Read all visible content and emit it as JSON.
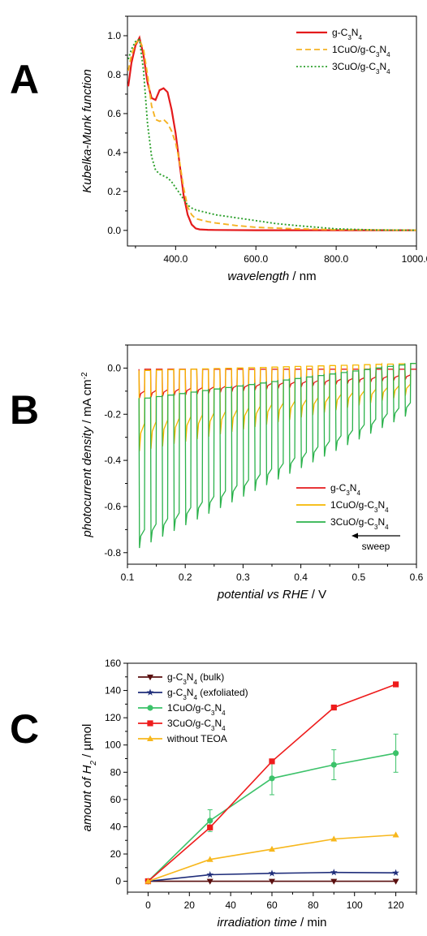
{
  "chart_data": [
    {
      "panel": "A",
      "type": "line",
      "xlabel": {
        "italic": "wavelength",
        "rest": " / nm"
      },
      "ylabel": {
        "italic": "Kubelka-Munk function",
        "rest": ""
      },
      "xlim": [
        280,
        1000
      ],
      "ylim": [
        -0.08,
        1.1
      ],
      "xticks": [
        400,
        600,
        800,
        1000
      ],
      "yticks": [
        0.0,
        0.2,
        0.4,
        0.6,
        0.8,
        1.0
      ],
      "series": [
        {
          "name": "g-C3N4",
          "name_html": "g-C<tspan baseline-shift='sub' font-size='8'>3</tspan>N<tspan baseline-shift='sub' font-size='8'>4</tspan>",
          "color": "#e41a1c",
          "style": "solid",
          "x": [
            282,
            290,
            300,
            310,
            320,
            330,
            340,
            350,
            360,
            370,
            380,
            390,
            400,
            410,
            420,
            430,
            440,
            450,
            460,
            480,
            500,
            600,
            800,
            1000
          ],
          "y": [
            0.74,
            0.86,
            0.95,
            0.99,
            0.9,
            0.76,
            0.68,
            0.67,
            0.72,
            0.73,
            0.71,
            0.62,
            0.5,
            0.34,
            0.18,
            0.08,
            0.03,
            0.01,
            0.005,
            0.003,
            0.002,
            0.001,
            0.001,
            0.001
          ]
        },
        {
          "name": "1CuO/g-C3N4",
          "name_html": "1CuO/g-C<tspan baseline-shift='sub' font-size='8'>3</tspan>N<tspan baseline-shift='sub' font-size='8'>4</tspan>",
          "color": "#f5b324",
          "style": "dashed",
          "x": [
            282,
            290,
            300,
            310,
            320,
            330,
            340,
            350,
            360,
            370,
            380,
            390,
            400,
            410,
            420,
            430,
            440,
            450,
            460,
            480,
            500,
            550,
            600,
            700,
            800,
            900,
            1000
          ],
          "y": [
            0.82,
            0.9,
            0.96,
            0.98,
            0.93,
            0.8,
            0.64,
            0.57,
            0.56,
            0.57,
            0.55,
            0.51,
            0.45,
            0.35,
            0.22,
            0.12,
            0.08,
            0.06,
            0.055,
            0.045,
            0.038,
            0.025,
            0.016,
            0.008,
            0.004,
            0.002,
            0.001
          ]
        },
        {
          "name": "3CuO/g-C3N4",
          "name_html": "3CuO/g-C<tspan baseline-shift='sub' font-size='8'>3</tspan>N<tspan baseline-shift='sub' font-size='8'>4</tspan>",
          "color": "#2ca02c",
          "style": "dotted",
          "x": [
            282,
            290,
            300,
            310,
            320,
            330,
            340,
            350,
            360,
            370,
            380,
            390,
            400,
            410,
            420,
            430,
            440,
            450,
            460,
            480,
            500,
            550,
            600,
            650,
            700,
            800,
            900,
            1000
          ],
          "y": [
            0.88,
            0.93,
            0.97,
            0.98,
            0.82,
            0.55,
            0.38,
            0.31,
            0.29,
            0.28,
            0.27,
            0.25,
            0.22,
            0.19,
            0.16,
            0.13,
            0.115,
            0.105,
            0.1,
            0.09,
            0.08,
            0.065,
            0.05,
            0.035,
            0.025,
            0.008,
            0.002,
            0.001
          ]
        }
      ]
    },
    {
      "panel": "B",
      "type": "line",
      "xlabel": {
        "italic": "potential vs RHE",
        "rest": " / V"
      },
      "ylabel": {
        "italic": "photocurrent density",
        "rest": " / mA cm",
        "sup": "-2"
      },
      "xlim": [
        0.1,
        0.6
      ],
      "ylim": [
        -0.85,
        0.1
      ],
      "xticks": [
        0.1,
        0.2,
        0.3,
        0.4,
        0.5,
        0.6
      ],
      "yticks": [
        -0.8,
        -0.6,
        -0.4,
        -0.2,
        0.0
      ],
      "sweep_label": "sweep",
      "pulse": {
        "start": 0.12,
        "end": 0.59,
        "period": 0.02
      },
      "series": [
        {
          "name": "g-C3N4",
          "name_html": "g-C<tspan baseline-shift='sub' font-size='8'>3</tspan>N<tspan baseline-shift='sub' font-size='8'>4</tspan>",
          "color": "#e41a1c",
          "dark": [
            -0.005,
            -0.005
          ],
          "peak": [
            -0.13,
            -0.05
          ],
          "steady": [
            -0.1,
            -0.03
          ]
        },
        {
          "name": "1CuO/g-C3N4",
          "name_html": "1CuO/g-C<tspan baseline-shift='sub' font-size='8'>3</tspan>N<tspan baseline-shift='sub' font-size='8'>4</tspan>",
          "color": "#f5b700",
          "dark": [
            -0.01,
            0.02
          ],
          "peak": [
            -0.36,
            -0.12
          ],
          "steady": [
            -0.24,
            -0.07
          ]
        },
        {
          "name": "3CuO/g-C3N4",
          "name_html": "3CuO/g-C<tspan baseline-shift='sub' font-size='8'>3</tspan>N<tspan baseline-shift='sub' font-size='8'>4</tspan>",
          "color": "#2bb24c",
          "dark": [
            -0.13,
            0.02
          ],
          "peak": [
            -0.78,
            -0.21
          ],
          "steady": [
            -0.7,
            -0.15
          ]
        }
      ]
    },
    {
      "panel": "C",
      "type": "line",
      "xlabel": {
        "italic": "irradiation time",
        "rest": " / min"
      },
      "ylabel": {
        "italic": "amount of H",
        "sub": "2",
        "rest": " / µmol"
      },
      "xlim": [
        -10,
        130
      ],
      "ylim": [
        -8,
        160
      ],
      "xticks": [
        0,
        20,
        40,
        60,
        80,
        100,
        120
      ],
      "yticks": [
        0,
        20,
        40,
        60,
        80,
        100,
        120,
        140,
        160
      ],
      "series": [
        {
          "name": "g-C3N4 (bulk)",
          "name_html": "g-C<tspan baseline-shift='sub' font-size='8'>3</tspan>N<tspan baseline-shift='sub' font-size='8'>4</tspan> (bulk)",
          "color": "#5a0f0f",
          "marker": "triangle-down",
          "x": [
            0,
            30,
            60,
            90,
            120
          ],
          "y": [
            0,
            0,
            0,
            0,
            0
          ]
        },
        {
          "name": "g-C3N4 (exfoliated)",
          "name_html": "g-C<tspan baseline-shift='sub' font-size='8'>3</tspan>N<tspan baseline-shift='sub' font-size='8'>4</tspan> (exfoliated)",
          "color": "#1f2d7a",
          "marker": "star",
          "x": [
            0,
            30,
            60,
            90,
            120
          ],
          "y": [
            0,
            4.8,
            5.8,
            6.5,
            6.2
          ]
        },
        {
          "name": "1CuO/g-C3N4",
          "name_html": "1CuO/g-C<tspan baseline-shift='sub' font-size='8'>3</tspan>N<tspan baseline-shift='sub' font-size='8'>4</tspan>",
          "color": "#3cc26a",
          "marker": "circle",
          "x": [
            0,
            30,
            60,
            90,
            120
          ],
          "y": [
            0,
            44.5,
            75.5,
            85.5,
            94
          ],
          "err": [
            0,
            8,
            12,
            11,
            14
          ]
        },
        {
          "name": "3CuO/g-C3N4",
          "name_html": "3CuO/g-C<tspan baseline-shift='sub' font-size='8'>3</tspan>N<tspan baseline-shift='sub' font-size='8'>4</tspan>",
          "color": "#ee1c1c",
          "marker": "square",
          "x": [
            0,
            30,
            60,
            90,
            120
          ],
          "y": [
            0,
            39.5,
            88,
            127.5,
            144.5
          ]
        },
        {
          "name": "without TEOA",
          "name_html": "without TEOA",
          "color": "#f7b71c",
          "marker": "triangle-up",
          "x": [
            0,
            30,
            60,
            90,
            120
          ],
          "y": [
            0,
            16,
            23.5,
            31,
            34
          ]
        }
      ]
    }
  ]
}
